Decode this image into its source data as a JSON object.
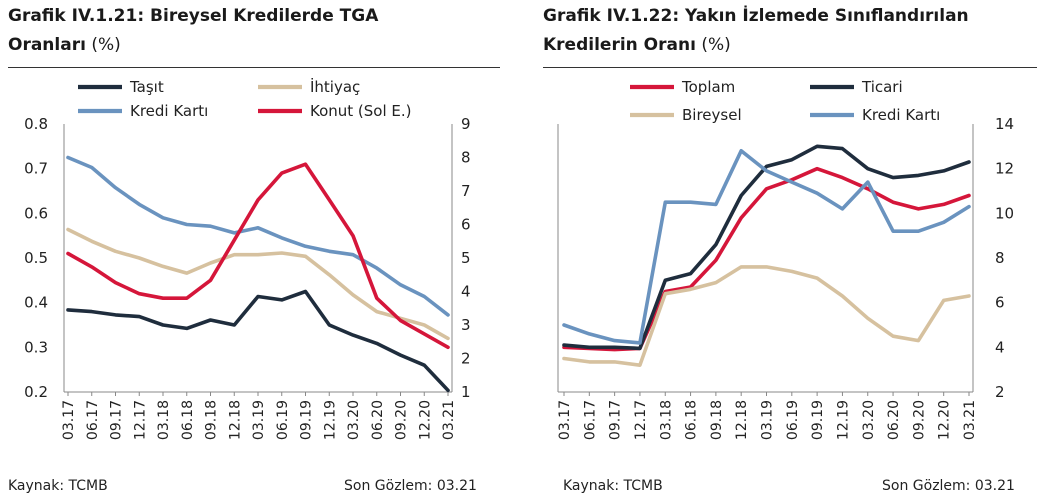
{
  "colors": {
    "tasit": "#1f2d3d",
    "ihtiyac": "#d6c19f",
    "kredi_karti": "#6a93bf",
    "konut": "#d5163a",
    "toplam": "#d5163a",
    "ticari": "#1f2d3d",
    "bireysel": "#d6c19f"
  },
  "left": {
    "title_bold": "Grafik IV.1.21: Bireysel Kredilerde TGA",
    "title_bold2": "Oranları",
    "title_unit": "(%)",
    "source": "Kaynak: TCMB",
    "last_obs": "Son Gözlem: 03.21"
  },
  "right": {
    "title_bold": "Grafik IV.1.22: Yakın İzlemede Sınıflandırılan",
    "title_bold2": "Kredilerin Oranı",
    "title_unit": "(%)",
    "source": "Kaynak: TCMB",
    "last_obs": "Son Gözlem: 03.21"
  },
  "chart_data": [
    {
      "type": "line",
      "x_tick_labels": [
        "03.17",
        "06.17",
        "09.17",
        "12.17",
        "03.18",
        "06.18",
        "09.18",
        "12.18",
        "03.19",
        "06.19",
        "09.19",
        "12.19",
        "03.20",
        "06.20",
        "09.20",
        "12.20",
        "03.21"
      ],
      "y_left_ticks": [
        "0.2",
        "0.3",
        "0.4",
        "0.5",
        "0.6",
        "0.7",
        "0.8"
      ],
      "y_right_ticks": [
        "1",
        "2",
        "3",
        "4",
        "5",
        "6",
        "7",
        "8",
        "9"
      ],
      "ylim_left": [
        0.2,
        0.8
      ],
      "ylim_right": [
        1,
        9
      ],
      "legend": [
        "Taşıt",
        "İhtiyaç",
        "Kredi Kartı",
        "Konut (Sol E.)"
      ],
      "series": [
        {
          "name": "Taşıt",
          "axis": "right",
          "color_key": "tasit",
          "values": [
            3.45,
            3.4,
            3.3,
            3.25,
            3.0,
            2.9,
            3.15,
            3.0,
            3.85,
            3.75,
            4.0,
            3.0,
            2.7,
            2.45,
            2.1,
            1.8,
            1.05
          ]
        },
        {
          "name": "İhtiyaç",
          "axis": "right",
          "color_key": "ihtiyac",
          "values": [
            5.85,
            5.5,
            5.2,
            5.0,
            4.75,
            4.55,
            4.85,
            5.1,
            5.1,
            5.15,
            5.05,
            4.5,
            3.9,
            3.4,
            3.2,
            3.0,
            2.6
          ]
        },
        {
          "name": "Kredi Kartı",
          "axis": "right",
          "color_key": "kredi_karti",
          "values": [
            8.0,
            7.7,
            7.1,
            6.6,
            6.2,
            6.0,
            5.95,
            5.75,
            5.9,
            5.6,
            5.35,
            5.2,
            5.1,
            4.7,
            4.2,
            3.85,
            3.3
          ]
        },
        {
          "name": "Konut (Sol E.)",
          "axis": "left",
          "color_key": "konut",
          "values": [
            0.51,
            0.48,
            0.445,
            0.42,
            0.41,
            0.41,
            0.45,
            0.54,
            0.63,
            0.69,
            0.71,
            0.63,
            0.55,
            0.41,
            0.36,
            0.33,
            0.3
          ]
        }
      ]
    },
    {
      "type": "line",
      "x_tick_labels": [
        "03.17",
        "06.17",
        "09.17",
        "12.17",
        "03.18",
        "06.18",
        "09.18",
        "12.18",
        "03.19",
        "06.19",
        "09.19",
        "12.19",
        "03.20",
        "06.20",
        "09.20",
        "12.20",
        "03.21"
      ],
      "y_right_ticks": [
        "2",
        "4",
        "6",
        "8",
        "10",
        "12",
        "14"
      ],
      "ylim_right": [
        2,
        14
      ],
      "legend": [
        "Toplam",
        "Ticari",
        "Bireysel",
        "Kredi Kartı"
      ],
      "series": [
        {
          "name": "Toplam",
          "axis": "right",
          "color_key": "toplam",
          "values": [
            4.0,
            3.95,
            3.9,
            3.95,
            6.5,
            6.7,
            7.9,
            9.8,
            11.1,
            11.5,
            12.0,
            11.6,
            11.1,
            10.5,
            10.2,
            10.4,
            10.8
          ]
        },
        {
          "name": "Ticari",
          "axis": "right",
          "color_key": "ticari",
          "values": [
            4.1,
            4.0,
            4.0,
            3.95,
            7.0,
            7.3,
            8.6,
            10.8,
            12.1,
            12.4,
            13.0,
            12.9,
            12.0,
            11.6,
            11.7,
            11.9,
            12.3
          ]
        },
        {
          "name": "Bireysel",
          "axis": "right",
          "color_key": "bireysel",
          "values": [
            3.5,
            3.35,
            3.35,
            3.2,
            6.4,
            6.6,
            6.9,
            7.6,
            7.6,
            7.4,
            7.1,
            6.3,
            5.3,
            4.5,
            4.3,
            6.1,
            6.3
          ]
        },
        {
          "name": "Kredi Kartı",
          "axis": "right",
          "color_key": "kredi_karti",
          "values": [
            5.0,
            4.6,
            4.3,
            4.2,
            10.5,
            10.5,
            10.4,
            12.8,
            11.9,
            11.4,
            10.9,
            10.2,
            11.4,
            9.2,
            9.2,
            9.6,
            10.3
          ]
        }
      ]
    }
  ]
}
